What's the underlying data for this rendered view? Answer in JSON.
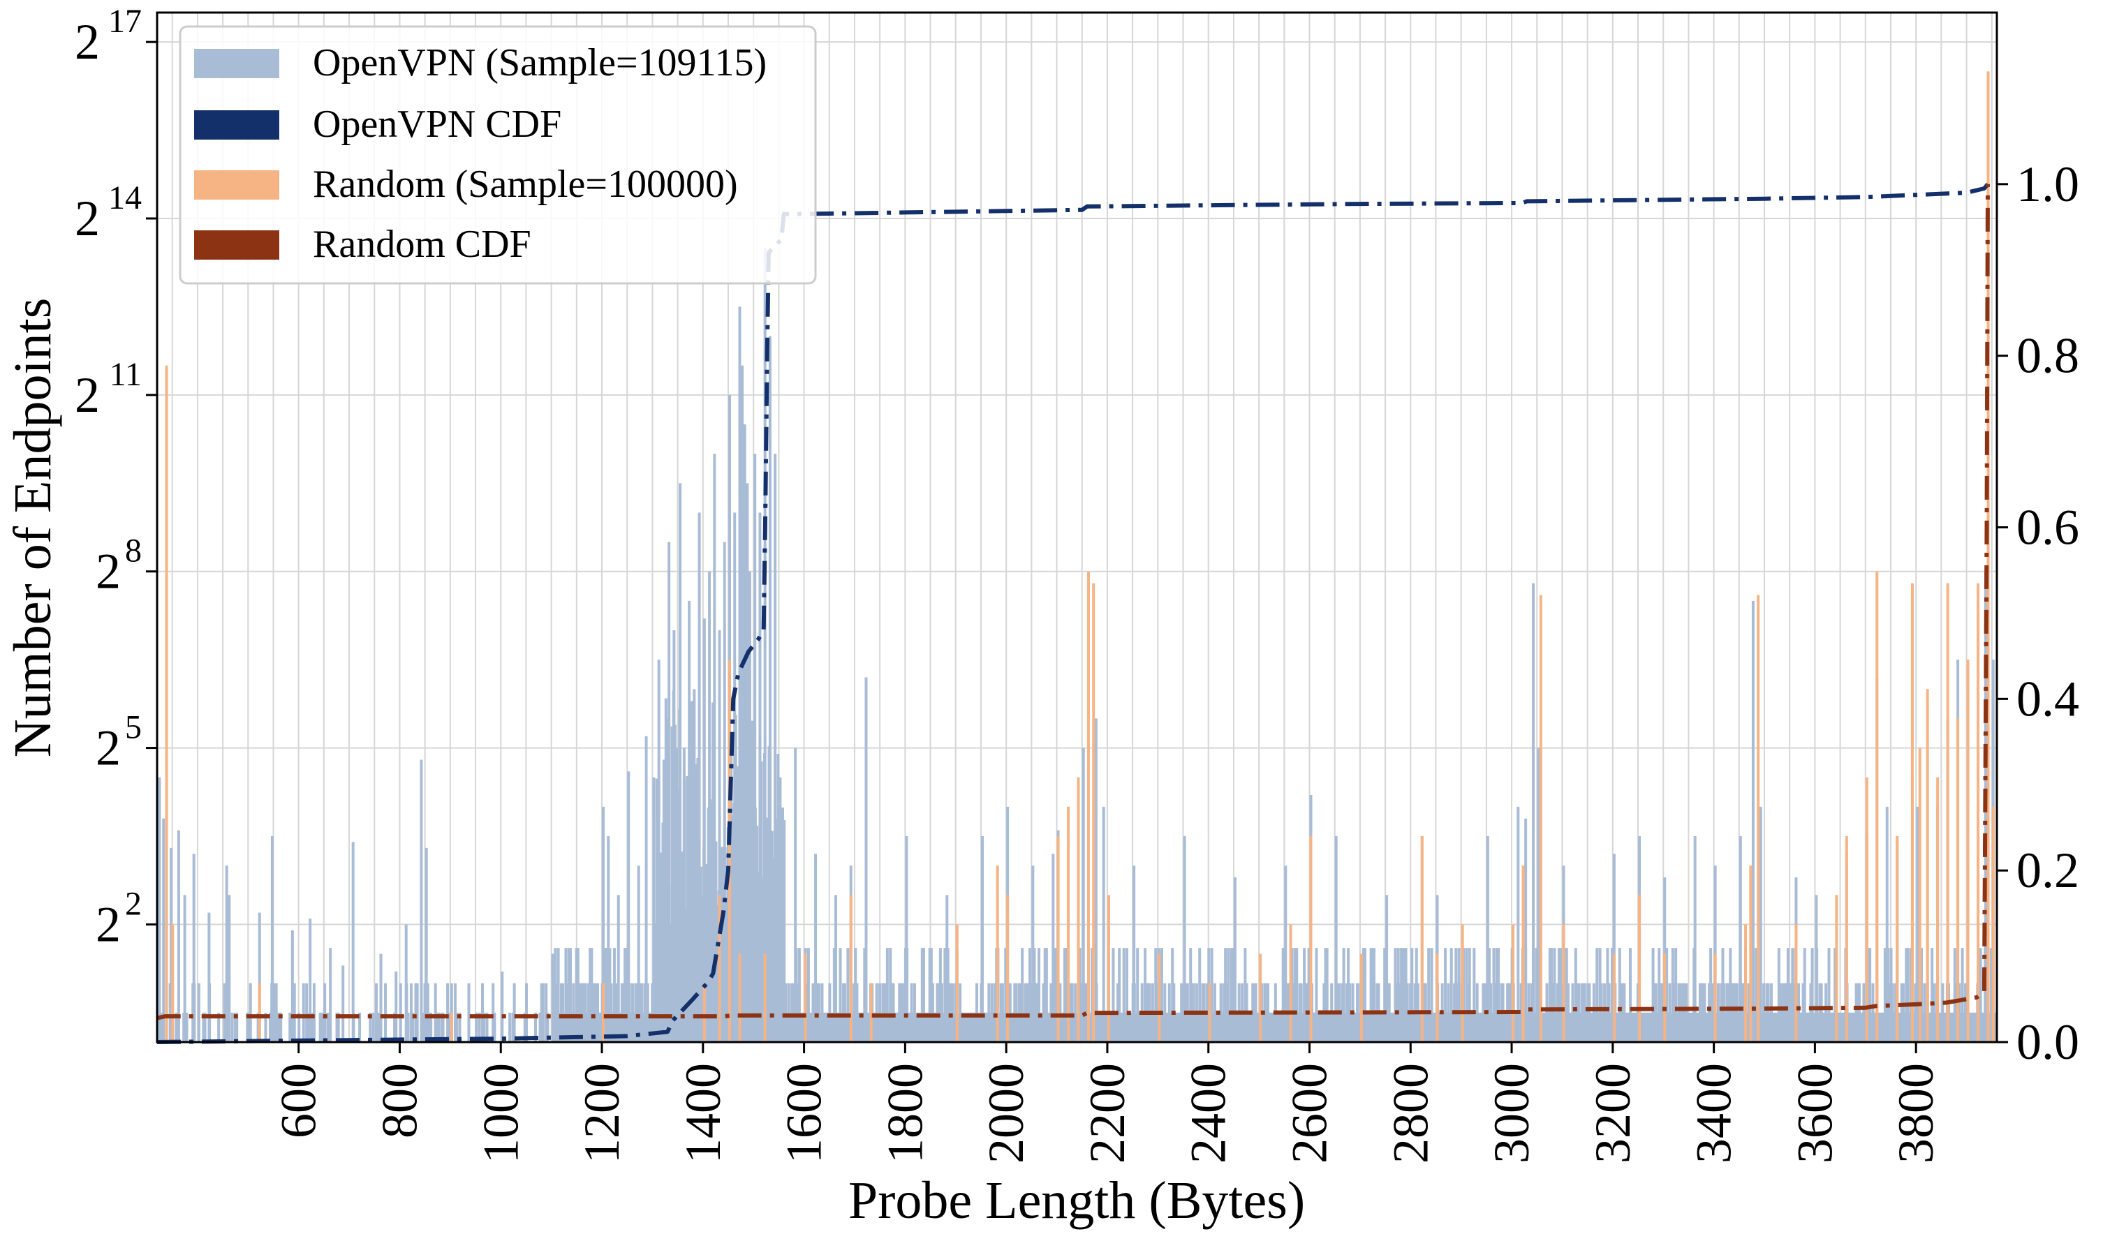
{
  "chart_data": {
    "type": "bar",
    "xlabel": "Probe Length (Bytes)",
    "ylabel": "Number of Endpoints",
    "y_scale": "log2",
    "xlim": [
      320,
      3960
    ],
    "ylim_log2": [
      0,
      17.5
    ],
    "y2lim": [
      0,
      1.2
    ],
    "x_ticks": [
      600,
      800,
      1000,
      1200,
      1400,
      1600,
      1800,
      2000,
      2200,
      2400,
      2600,
      2800,
      3000,
      3200,
      3400,
      3600,
      3800
    ],
    "y_ticks": [
      {
        "value_log2": 2,
        "base": "2",
        "exp": "2"
      },
      {
        "value_log2": 5,
        "base": "2",
        "exp": "5"
      },
      {
        "value_log2": 8,
        "base": "2",
        "exp": "8"
      },
      {
        "value_log2": 11,
        "base": "2",
        "exp": "11"
      },
      {
        "value_log2": 14,
        "base": "2",
        "exp": "14"
      },
      {
        "value_log2": 17,
        "base": "2",
        "exp": "17"
      }
    ],
    "y2_ticks": [
      "0.0",
      "0.2",
      "0.4",
      "0.6",
      "0.8",
      "1.0"
    ],
    "grid": true,
    "legend_position": "top-left",
    "legend": [
      {
        "label": "OpenVPN (Sample=109115)",
        "color": "#a9bcd6"
      },
      {
        "label": "OpenVPN CDF",
        "color": "#14306a"
      },
      {
        "label": "Random (Sample=100000)",
        "color": "#f6b484"
      },
      {
        "label": "Random CDF",
        "color": "#8c3314"
      }
    ],
    "series": [
      {
        "name": "OpenVPN (Sample=109115)",
        "color": "#a9bcd6",
        "note": "counts per probe length (log2 of count); remaining lengths 320-3960 hold counts of 1-3",
        "bars_log2": [
          [
            322,
            4.5
          ],
          [
            330,
            3.8
          ],
          [
            345,
            3.3
          ],
          [
            360,
            3.6
          ],
          [
            372,
            2.5
          ],
          [
            390,
            3.2
          ],
          [
            420,
            2.2
          ],
          [
            455,
            3.0
          ],
          [
            460,
            2.5
          ],
          [
            520,
            2.2
          ],
          [
            545,
            3.5
          ],
          [
            585,
            1.9
          ],
          [
            620,
            2.1
          ],
          [
            660,
            1.6
          ],
          [
            685,
            1.3
          ],
          [
            705,
            3.4
          ],
          [
            760,
            1.5
          ],
          [
            790,
            1.2
          ],
          [
            810,
            2.0
          ],
          [
            840,
            4.8
          ],
          [
            850,
            3.3
          ],
          [
            900,
            1.0
          ],
          [
            1000,
            1.2
          ],
          [
            1100,
            1.5
          ],
          [
            1200,
            4.0
          ],
          [
            1210,
            3.5
          ],
          [
            1230,
            2.5
          ],
          [
            1250,
            4.6
          ],
          [
            1270,
            3.0
          ],
          [
            1285,
            5.2
          ],
          [
            1300,
            4.5
          ],
          [
            1310,
            6.5
          ],
          [
            1320,
            4.8
          ],
          [
            1330,
            8.5
          ],
          [
            1340,
            7.0
          ],
          [
            1352,
            9.5
          ],
          [
            1360,
            5.0
          ],
          [
            1370,
            7.5
          ],
          [
            1380,
            6.0
          ],
          [
            1390,
            9.0
          ],
          [
            1400,
            7.2
          ],
          [
            1410,
            8.0
          ],
          [
            1420,
            10.0
          ],
          [
            1430,
            7.0
          ],
          [
            1440,
            8.5
          ],
          [
            1450,
            11.0
          ],
          [
            1460,
            9.0
          ],
          [
            1470,
            12.5
          ],
          [
            1475,
            11.5
          ],
          [
            1480,
            10.5
          ],
          [
            1485,
            9.5
          ],
          [
            1490,
            8.0
          ],
          [
            1500,
            10.0
          ],
          [
            1510,
            9.0
          ],
          [
            1520,
            13.5
          ],
          [
            1530,
            12.0
          ],
          [
            1540,
            10.0
          ],
          [
            1550,
            4.5
          ],
          [
            1580,
            5.0
          ],
          [
            1620,
            3.2
          ],
          [
            1660,
            2.5
          ],
          [
            1690,
            3.0
          ],
          [
            1720,
            6.2
          ],
          [
            1800,
            3.5
          ],
          [
            1880,
            2.5
          ],
          [
            1950,
            3.5
          ],
          [
            2000,
            4.0
          ],
          [
            2050,
            3.0
          ],
          [
            2090,
            3.2
          ],
          [
            2100,
            3.6
          ],
          [
            2120,
            4.0
          ],
          [
            2150,
            5.0
          ],
          [
            2160,
            7.8
          ],
          [
            2175,
            5.5
          ],
          [
            2190,
            4.0
          ],
          [
            2250,
            3.0
          ],
          [
            2350,
            3.5
          ],
          [
            2450,
            2.8
          ],
          [
            2550,
            3.0
          ],
          [
            2600,
            4.2
          ],
          [
            2650,
            3.5
          ],
          [
            2750,
            2.5
          ],
          [
            2820,
            3.5
          ],
          [
            2850,
            2.5
          ],
          [
            2950,
            3.5
          ],
          [
            3010,
            4.0
          ],
          [
            3025,
            3.8
          ],
          [
            3040,
            7.8
          ],
          [
            3050,
            5.0
          ],
          [
            3100,
            3.0
          ],
          [
            3200,
            3.2
          ],
          [
            3250,
            3.5
          ],
          [
            3300,
            2.8
          ],
          [
            3360,
            3.5
          ],
          [
            3400,
            3.0
          ],
          [
            3450,
            3.5
          ],
          [
            3475,
            7.5
          ],
          [
            3490,
            4.0
          ],
          [
            3560,
            2.8
          ],
          [
            3600,
            2.5
          ],
          [
            3660,
            3.2
          ],
          [
            3700,
            3.5
          ],
          [
            3720,
            6.2
          ],
          [
            3740,
            4.0
          ],
          [
            3760,
            3.5
          ],
          [
            3790,
            4.5
          ],
          [
            3800,
            4.0
          ],
          [
            3820,
            5.0
          ],
          [
            3840,
            4.0
          ],
          [
            3860,
            5.5
          ],
          [
            3880,
            6.5
          ],
          [
            3900,
            6.0
          ],
          [
            3920,
            7.5
          ],
          [
            3935,
            8.0
          ],
          [
            3950,
            6.5
          ]
        ]
      },
      {
        "name": "Random (Sample=100000)",
        "color": "#f6b484",
        "note": "counts per probe length (log2 of count); remaining lengths hold counts of 1-2",
        "bars_log2": [
          [
            336,
            11.5
          ],
          [
            348,
            2.0
          ],
          [
            520,
            1.0
          ],
          [
            900,
            0.5
          ],
          [
            1200,
            1.0
          ],
          [
            1400,
            1.0
          ],
          [
            1430,
            2.5
          ],
          [
            1450,
            6.5
          ],
          [
            1470,
            1.5
          ],
          [
            1520,
            1.5
          ],
          [
            1600,
            1.5
          ],
          [
            1690,
            2.5
          ],
          [
            1730,
            1.0
          ],
          [
            1900,
            2.0
          ],
          [
            1980,
            3.0
          ],
          [
            2000,
            2.5
          ],
          [
            2100,
            3.5
          ],
          [
            2120,
            4.0
          ],
          [
            2140,
            4.5
          ],
          [
            2160,
            8.0
          ],
          [
            2170,
            7.8
          ],
          [
            2200,
            2.5
          ],
          [
            2300,
            1.5
          ],
          [
            2400,
            1.0
          ],
          [
            2500,
            1.5
          ],
          [
            2560,
            2.0
          ],
          [
            2600,
            3.5
          ],
          [
            2700,
            1.5
          ],
          [
            2820,
            3.5
          ],
          [
            2850,
            1.5
          ],
          [
            2900,
            2.0
          ],
          [
            3000,
            2.0
          ],
          [
            3020,
            3.0
          ],
          [
            3055,
            7.6
          ],
          [
            3100,
            2.0
          ],
          [
            3200,
            1.5
          ],
          [
            3250,
            2.5
          ],
          [
            3300,
            1.5
          ],
          [
            3400,
            1.5
          ],
          [
            3460,
            2.0
          ],
          [
            3470,
            3.0
          ],
          [
            3485,
            7.6
          ],
          [
            3560,
            2.0
          ],
          [
            3640,
            2.5
          ],
          [
            3660,
            3.5
          ],
          [
            3700,
            4.5
          ],
          [
            3720,
            8.0
          ],
          [
            3760,
            3.5
          ],
          [
            3790,
            7.8
          ],
          [
            3805,
            5.0
          ],
          [
            3820,
            6.0
          ],
          [
            3840,
            4.5
          ],
          [
            3860,
            7.8
          ],
          [
            3880,
            5.5
          ],
          [
            3900,
            6.5
          ],
          [
            3920,
            7.8
          ],
          [
            3940,
            16.5
          ],
          [
            3950,
            4.0
          ]
        ]
      }
    ],
    "cdf_series": [
      {
        "name": "OpenVPN CDF",
        "color": "#14306a",
        "style": "dash-dot",
        "points": [
          [
            320,
            0.0
          ],
          [
            650,
            0.002
          ],
          [
            1000,
            0.004
          ],
          [
            1250,
            0.007
          ],
          [
            1330,
            0.012
          ],
          [
            1340,
            0.025
          ],
          [
            1380,
            0.05
          ],
          [
            1410,
            0.07
          ],
          [
            1420,
            0.08
          ],
          [
            1440,
            0.15
          ],
          [
            1450,
            0.2
          ],
          [
            1455,
            0.3
          ],
          [
            1460,
            0.4
          ],
          [
            1470,
            0.43
          ],
          [
            1490,
            0.455
          ],
          [
            1510,
            0.47
          ],
          [
            1520,
            0.48
          ],
          [
            1523,
            0.6
          ],
          [
            1527,
            0.8
          ],
          [
            1530,
            0.92
          ],
          [
            1545,
            0.93
          ],
          [
            1555,
            0.935
          ],
          [
            1560,
            0.965
          ],
          [
            1800,
            0.967
          ],
          [
            2150,
            0.97
          ],
          [
            2160,
            0.974
          ],
          [
            2700,
            0.977
          ],
          [
            3020,
            0.978
          ],
          [
            3030,
            0.98
          ],
          [
            3500,
            0.983
          ],
          [
            3700,
            0.985
          ],
          [
            3900,
            0.99
          ],
          [
            3935,
            0.995
          ],
          [
            3942,
            1.0
          ]
        ]
      },
      {
        "name": "Random CDF",
        "color": "#8c3314",
        "style": "dash-dot",
        "points": [
          [
            320,
            0.028
          ],
          [
            336,
            0.03
          ],
          [
            1440,
            0.03
          ],
          [
            1460,
            0.031
          ],
          [
            2150,
            0.031
          ],
          [
            2160,
            0.034
          ],
          [
            3020,
            0.035
          ],
          [
            3030,
            0.038
          ],
          [
            3480,
            0.039
          ],
          [
            3700,
            0.04
          ],
          [
            3720,
            0.042
          ],
          [
            3800,
            0.044
          ],
          [
            3860,
            0.046
          ],
          [
            3900,
            0.05
          ],
          [
            3920,
            0.052
          ],
          [
            3935,
            0.058
          ],
          [
            3940,
            0.6
          ],
          [
            3942,
            1.0
          ]
        ]
      }
    ]
  }
}
